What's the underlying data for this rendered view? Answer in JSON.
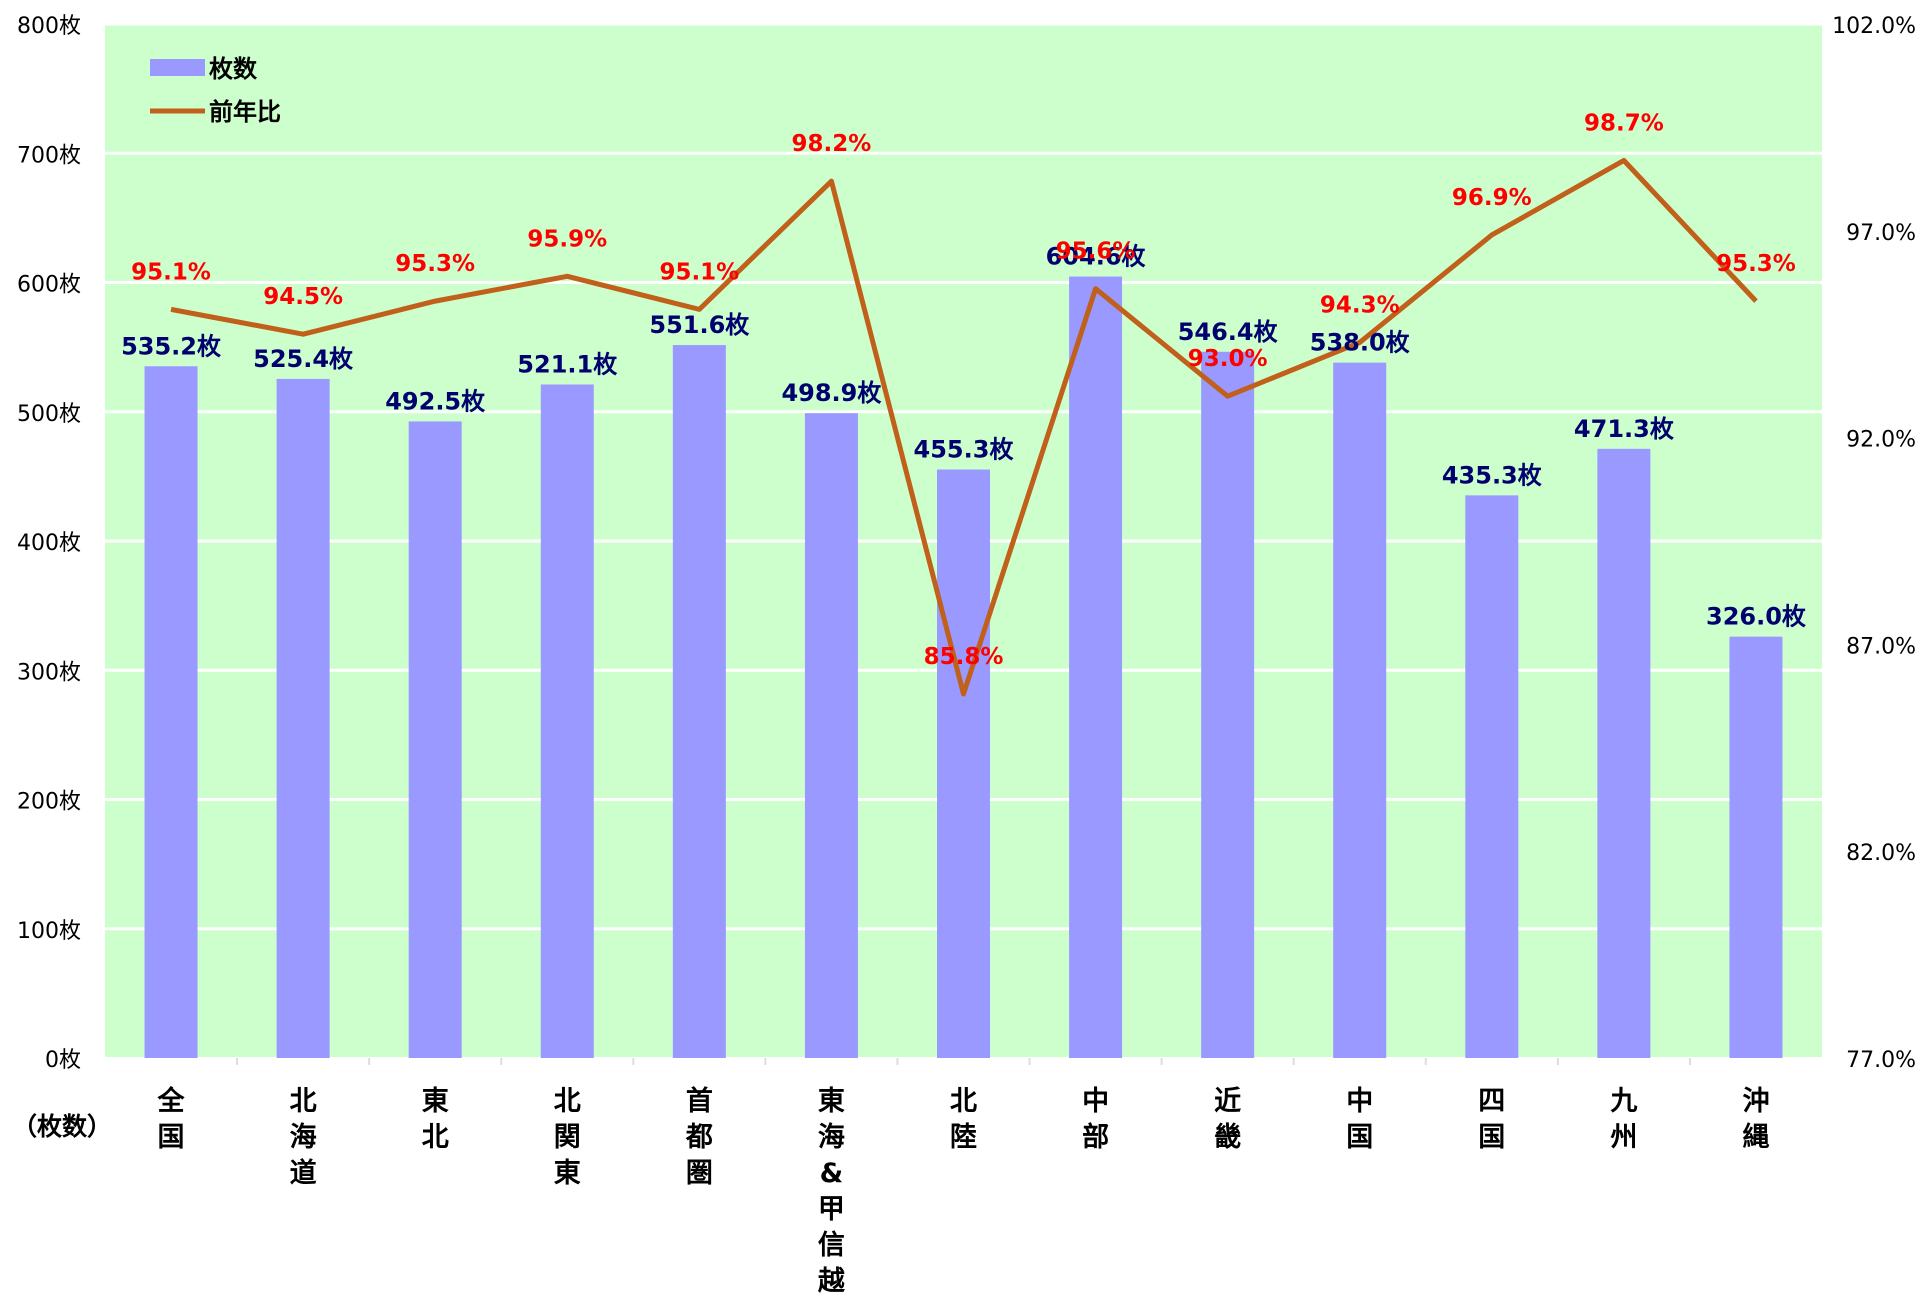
{
  "chart_data": {
    "type": "bar",
    "categories": [
      [
        "全",
        "国"
      ],
      [
        "北",
        "海",
        "道"
      ],
      [
        "東",
        "北"
      ],
      [
        "北",
        "関",
        "東"
      ],
      [
        "首",
        "都",
        "圏"
      ],
      [
        "東",
        "海",
        "&",
        "甲",
        "信",
        "越"
      ],
      [
        "北",
        "陸"
      ],
      [
        "中",
        "部"
      ],
      [
        "近",
        "畿"
      ],
      [
        "中",
        "国"
      ],
      [
        "四",
        "国"
      ],
      [
        "九",
        "州"
      ],
      [
        "沖",
        "縄"
      ]
    ],
    "series": [
      {
        "name": "枚数",
        "kind": "bar",
        "axis": "left",
        "color": "#9999ff",
        "values": [
          535.2,
          525.4,
          492.5,
          521.1,
          551.6,
          498.9,
          455.3,
          604.6,
          546.4,
          538.0,
          435.3,
          471.3,
          326.0
        ],
        "labels": [
          "535.2枚",
          "525.4枚",
          "492.5枚",
          "521.1枚",
          "551.6枚",
          "498.9枚",
          "455.3枚",
          "604.6枚",
          "546.4枚",
          "538.0枚",
          "435.3枚",
          "471.3枚",
          "326.0枚"
        ]
      },
      {
        "name": "前年比",
        "kind": "line",
        "axis": "right",
        "color": "#c0601a",
        "values": [
          95.1,
          94.5,
          95.3,
          95.9,
          95.1,
          98.2,
          85.8,
          95.6,
          93.0,
          94.3,
          96.9,
          98.7,
          95.3
        ],
        "labels": [
          "95.1%",
          "94.5%",
          "95.3%",
          "95.9%",
          "95.1%",
          "98.2%",
          "85.8%",
          "95.6%",
          "93.0%",
          "94.3%",
          "96.9%",
          "98.7%",
          "95.3%"
        ]
      }
    ],
    "y_left": {
      "ylim": [
        0,
        800
      ],
      "ticks": [
        0,
        100,
        200,
        300,
        400,
        500,
        600,
        700,
        800
      ],
      "tick_labels": [
        "0枚",
        "100枚",
        "200枚",
        "300枚",
        "400枚",
        "500枚",
        "600枚",
        "700枚",
        "800枚"
      ],
      "unit_label": "（枚数）"
    },
    "y_right": {
      "ylim": [
        77.0,
        102.0
      ],
      "ticks": [
        77.0,
        82.0,
        87.0,
        92.0,
        97.0,
        102.0
      ],
      "tick_labels": [
        "77.0%",
        "82.0%",
        "87.0%",
        "92.0%",
        "97.0%",
        "102.0%"
      ]
    },
    "plot_background": "#ccffcc",
    "gridlines": true,
    "legend": {
      "position": "top-left",
      "entries": [
        "枚数",
        "前年比"
      ]
    }
  }
}
